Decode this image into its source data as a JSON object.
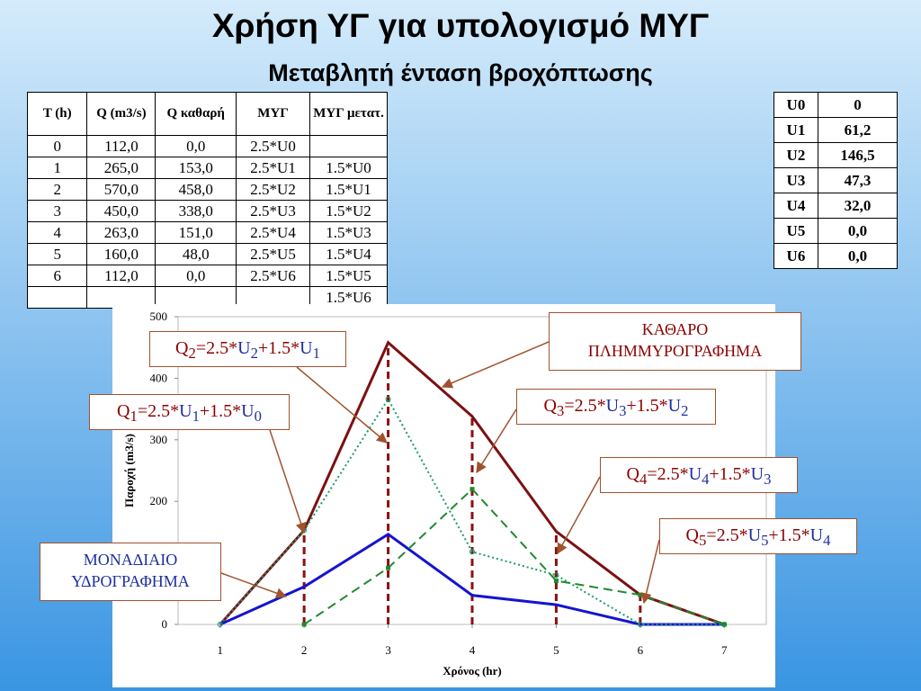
{
  "header": {
    "title": "Χρήση ΥΓ για υπολογισμό ΜΥΓ",
    "subtitle": "Μεταβλητή ένταση βροχόπτωσης"
  },
  "table1": {
    "columns": [
      "T (h)",
      "Q (m3/s)",
      "Q καθαρή",
      "ΜΥΓ",
      "ΜΥΓ μετατ."
    ],
    "rows": [
      [
        "0",
        "112,0",
        "0,0",
        "2.5*U0",
        null
      ],
      [
        "1",
        "265,0",
        "153,0",
        "2.5*U1",
        "1.5*U0"
      ],
      [
        "2",
        "570,0",
        "458,0",
        "2.5*U2",
        "1.5*U1"
      ],
      [
        "3",
        "450,0",
        "338,0",
        "2.5*U3",
        "1.5*U2"
      ],
      [
        "4",
        "263,0",
        "151,0",
        "2.5*U4",
        "1.5*U3"
      ],
      [
        "5",
        "160,0",
        "48,0",
        "2.5*U5",
        "1.5*U4"
      ],
      [
        "6",
        "112,0",
        "0,0",
        "2.5*U6",
        "1.5*U5"
      ],
      [
        null,
        null,
        null,
        null,
        "1.5*U6"
      ]
    ]
  },
  "table2": {
    "rows": [
      [
        "U0",
        "0"
      ],
      [
        "U1",
        "61,2"
      ],
      [
        "U2",
        "146,5"
      ],
      [
        "U3",
        "47,3"
      ],
      [
        "U4",
        "32,0"
      ],
      [
        "U5",
        "0,0"
      ],
      [
        "U6",
        "0,0"
      ]
    ]
  },
  "chart_data": {
    "type": "line",
    "x": [
      1,
      2,
      3,
      4,
      5,
      6,
      7
    ],
    "xlim": [
      0.5,
      7.5
    ],
    "xticks": [
      1,
      2,
      3,
      4,
      5,
      6,
      7
    ],
    "ylim": [
      0,
      500
    ],
    "yticks": [
      0,
      100,
      200,
      300,
      400,
      500
    ],
    "grid": false,
    "y_label": "Παροχή (m3/s)",
    "x_label": "Χρόνος (hr)",
    "series": [
      {
        "color": "#7b1010",
        "dash": "solid",
        "values": [
          0,
          153,
          458,
          338,
          151,
          48,
          0
        ]
      },
      {
        "color": "#1414d0",
        "dash": "solid",
        "values": [
          0,
          61.2,
          146.5,
          47.3,
          32,
          0,
          0
        ]
      },
      {
        "color": "#1a9a6a",
        "dash": "dotted",
        "values": [
          0,
          153,
          366,
          118,
          80,
          0,
          0
        ]
      },
      {
        "color": "#1e8a2e",
        "dash": "dashed",
        "values": [
          null,
          0,
          91.8,
          219.75,
          70.95,
          48,
          0
        ]
      }
    ],
    "annotations": [
      [
        "Q",
        "1",
        "=2.5*",
        "U",
        "1",
        "+1.5*",
        "U",
        "0"
      ],
      [
        "Q",
        "2",
        "=2.5*",
        "U",
        "2",
        "+1.5*",
        "U",
        "1"
      ],
      [
        "Q",
        "3",
        "=2.5*",
        "U",
        "3",
        "+1.5*",
        "U",
        "2"
      ],
      [
        "Q",
        "4",
        "=2.5*",
        "U",
        "4",
        "+1.5*",
        "U",
        "3"
      ],
      [
        "Q",
        "5",
        "=2.5*",
        "U",
        "5",
        "+1.5*",
        "U",
        "4"
      ]
    ],
    "labels": [
      [
        "ΚΑΘΑΡΟ",
        "ΠΛΗΜΜΥΡΟΓΡΑΦΗΜΑ"
      ],
      [
        "ΜΟΝΑΔΙΑΙΟ",
        "ΥΔΡΟΓΡΑΦΗΜΑ"
      ]
    ]
  }
}
